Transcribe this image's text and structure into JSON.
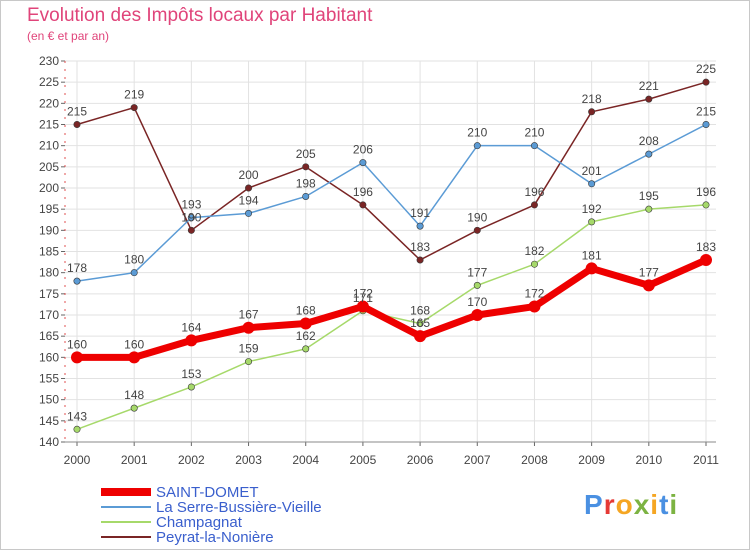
{
  "chart_data": {
    "type": "line",
    "title": "Evolution des Impôts locaux par Habitant",
    "subtitle": "(en € et par an)",
    "categories": [
      "2000",
      "2001",
      "2002",
      "2003",
      "2004",
      "2005",
      "2006",
      "2007",
      "2008",
      "2009",
      "2010",
      "2011"
    ],
    "ylim": [
      140,
      230
    ],
    "yticks": [
      140,
      145,
      150,
      155,
      160,
      165,
      170,
      175,
      180,
      185,
      190,
      195,
      200,
      205,
      210,
      215,
      220,
      225,
      230
    ],
    "xlabel": "",
    "ylabel": "",
    "series": [
      {
        "name": "SAINT-DOMET",
        "color": "#ee0000",
        "values": [
          160,
          160,
          164,
          167,
          168,
          172,
          165,
          170,
          172,
          181,
          177,
          183
        ]
      },
      {
        "name": "La Serre-Bussière-Vieille",
        "color": "#5b9bd5",
        "values": [
          178,
          180,
          193,
          194,
          198,
          206,
          191,
          210,
          210,
          201,
          208,
          215
        ]
      },
      {
        "name": "Champagnat",
        "color": "#a6d96a",
        "values": [
          143,
          148,
          153,
          159,
          162,
          171,
          168,
          177,
          182,
          192,
          195,
          196
        ]
      },
      {
        "name": "Peyrat-la-Nonière",
        "color": "#7a2525",
        "values": [
          215,
          219,
          190,
          200,
          205,
          196,
          183,
          190,
          196,
          218,
          221,
          225
        ]
      }
    ]
  },
  "brand": {
    "letters": [
      "P",
      "r",
      "o",
      "x",
      "i",
      "t",
      "i"
    ],
    "colors": [
      "#4a90e2",
      "#e53935",
      "#f5a623",
      "#7cb342",
      "#f5a623",
      "#4a90e2",
      "#7cb342"
    ]
  }
}
